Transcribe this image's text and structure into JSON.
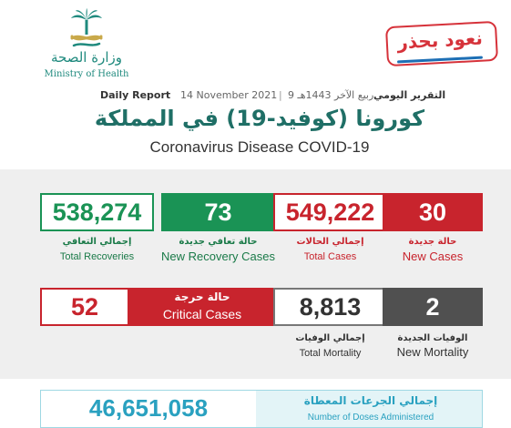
{
  "header": {
    "ministry_ar": "وزارة الصحة",
    "ministry_en": "Ministry of Health",
    "stamp_text": "نعود بحذر",
    "daily_report_en": "Daily Report",
    "date_gregorian": "14 November 2021",
    "separator": "|",
    "date_hijri": "9 ربيع الآخر 1443هـ",
    "daily_report_ar": "التقرير اليومي",
    "title_ar": "كورونا (كوفيد-19) في المملكة",
    "title_en": "Coronavirus Disease COVID-19"
  },
  "stats": {
    "total_recoveries": {
      "value": "538,274",
      "label_ar": "إجمالي التعافي",
      "label_en": "Total Recoveries"
    },
    "new_recovery_cases": {
      "value": "73",
      "label_ar": "حالة تعافي جديدة",
      "label_en": "New Recovery Cases"
    },
    "total_cases": {
      "value": "549,222",
      "label_ar": "إجمالي الحالات",
      "label_en": "Total Cases"
    },
    "new_cases": {
      "value": "30",
      "label_ar": "حالة جديدة",
      "label_en": "New Cases"
    },
    "critical_cases": {
      "value": "52",
      "label_ar": "حالة حرجة",
      "label_en": "Critical Cases"
    },
    "total_mortality": {
      "value": "8,813",
      "label_ar": "إجمالي الوفيات",
      "label_en": "Total Mortality"
    },
    "new_mortality": {
      "value": "2",
      "label_ar": "الوفيات الجديدة",
      "label_en": "New Mortality"
    }
  },
  "doses": {
    "value": "46,651,058",
    "label_ar": "إجمالي الجرعات المعطاة",
    "label_en": "Number of Doses Administered"
  },
  "colors": {
    "red": "#c8242d",
    "green": "#1a9355",
    "grey": "#505050",
    "teal": "#1f6f66",
    "cyan": "#2aa1c0"
  }
}
